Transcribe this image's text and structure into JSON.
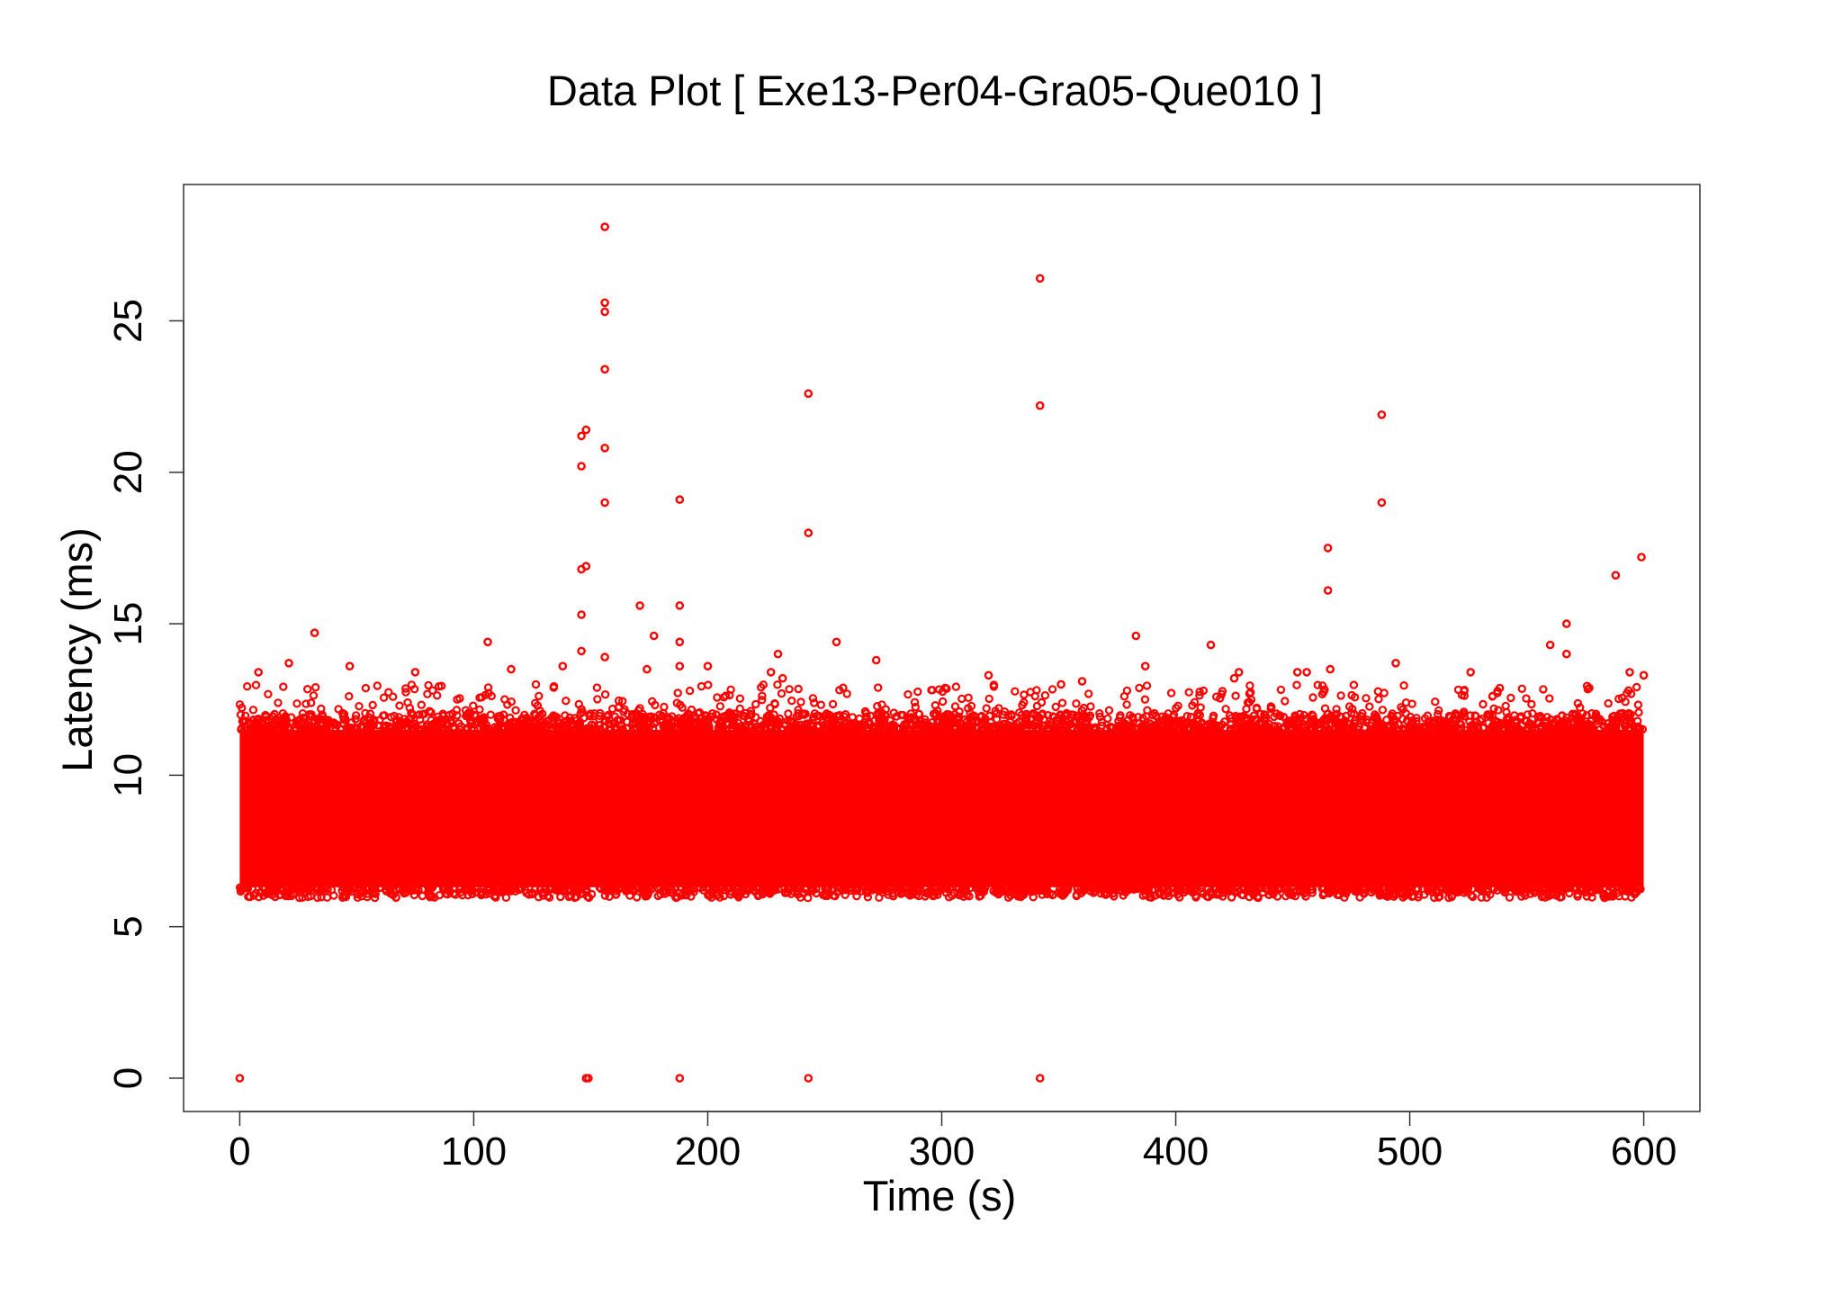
{
  "chart_data": {
    "type": "scatter",
    "title": "Data Plot [ Exe13-Per04-Gra05-Que010 ]",
    "xlabel": "Time (s)",
    "ylabel": "Latency (ms)",
    "xlim": [
      -24,
      624
    ],
    "ylim": [
      -1.1,
      29.5
    ],
    "x_ticks": [
      0,
      100,
      200,
      300,
      400,
      500,
      600
    ],
    "x_tick_labels": [
      "0",
      "100",
      "200",
      "300",
      "400",
      "500",
      "600"
    ],
    "y_ticks": [
      0,
      5,
      10,
      15,
      20,
      25
    ],
    "y_tick_labels": [
      "0",
      "5",
      "10",
      "15",
      "20",
      "25"
    ],
    "grid": false,
    "legend": "none",
    "marker": "open-circle",
    "color": "#ff0000",
    "band": {
      "description": "dense continuous cloud of samples",
      "x_range": [
        0,
        600
      ],
      "core_latency_range": [
        6.3,
        11.5
      ],
      "sparse_upper_range": [
        11.5,
        13.0
      ]
    },
    "series": [
      {
        "values": [
          [
            156,
            28.1
          ],
          [
            342,
            26.4
          ],
          [
            156,
            25.6
          ],
          [
            156,
            25.3
          ],
          [
            156,
            23.4
          ],
          [
            243,
            22.6
          ],
          [
            342,
            22.2
          ],
          [
            488,
            21.9
          ],
          [
            148,
            21.4
          ],
          [
            146,
            21.2
          ],
          [
            156,
            20.8
          ],
          [
            146,
            20.2
          ],
          [
            188,
            19.1
          ],
          [
            156,
            19.0
          ],
          [
            488,
            19.0
          ],
          [
            243,
            18.0
          ],
          [
            465,
            17.5
          ],
          [
            599,
            17.2
          ],
          [
            148,
            16.9
          ],
          [
            146,
            16.8
          ],
          [
            588,
            16.6
          ],
          [
            465,
            16.1
          ],
          [
            171,
            15.6
          ],
          [
            188,
            15.6
          ],
          [
            146,
            15.3
          ],
          [
            567,
            15.0
          ],
          [
            32,
            14.7
          ],
          [
            177,
            14.6
          ],
          [
            383,
            14.6
          ],
          [
            255,
            14.4
          ],
          [
            106,
            14.4
          ],
          [
            188,
            14.4
          ],
          [
            560,
            14.3
          ],
          [
            415,
            14.3
          ],
          [
            146,
            14.1
          ],
          [
            230,
            14.0
          ],
          [
            567,
            14.0
          ],
          [
            156,
            13.9
          ],
          [
            272,
            13.8
          ],
          [
            21,
            13.7
          ],
          [
            494,
            13.7
          ],
          [
            200,
            13.6
          ],
          [
            466,
            13.5
          ],
          [
            47,
            13.6
          ],
          [
            8,
            13.4
          ],
          [
            75,
            13.4
          ],
          [
            116,
            13.5
          ],
          [
            138,
            13.6
          ],
          [
            174,
            13.5
          ],
          [
            188,
            13.6
          ],
          [
            227,
            13.4
          ],
          [
            320,
            13.3
          ],
          [
            387,
            13.6
          ],
          [
            427,
            13.4
          ],
          [
            452,
            13.4
          ],
          [
            456,
            13.4
          ],
          [
            526,
            13.4
          ],
          [
            594,
            13.4
          ],
          [
            600,
            13.3
          ],
          [
            232,
            13.2
          ],
          [
            360,
            13.1
          ],
          [
            425,
            13.2
          ],
          [
            351,
            13.0
          ],
          [
            0,
            0.0
          ],
          [
            148,
            0.0
          ],
          [
            149,
            0.0
          ],
          [
            188,
            0.0
          ],
          [
            243,
            0.0
          ],
          [
            342,
            0.0
          ]
        ]
      }
    ]
  }
}
